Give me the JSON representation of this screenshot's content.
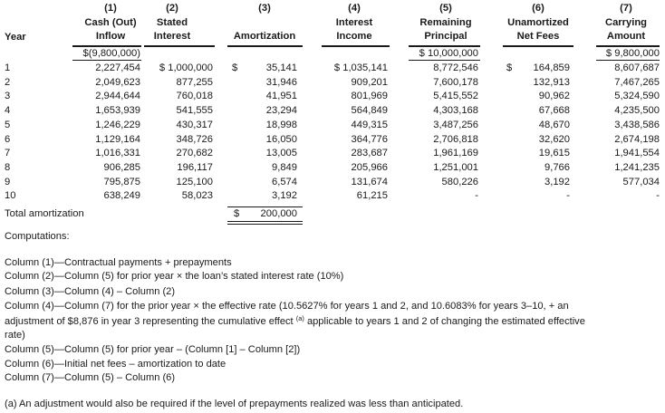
{
  "headers": [
    {
      "num": "(1)",
      "line1": "Cash (Out)",
      "line2": "Inflow"
    },
    {
      "num": "(2)",
      "line1": "Stated",
      "line2": "Interest"
    },
    {
      "num": "(3)",
      "line1": "",
      "line2": "Amortization"
    },
    {
      "num": "(4)",
      "line1": "Interest",
      "line2": "Income"
    },
    {
      "num": "(5)",
      "line1": "Remaining",
      "line2": "Principal"
    },
    {
      "num": "(6)",
      "line1": "Unamortized",
      "line2": "Net Fees"
    },
    {
      "num": "(7)",
      "line1": "Carrying",
      "line2": "Amount"
    }
  ],
  "year_header": "Year",
  "initial_row": {
    "c1": "$(9,800,000)",
    "c5": "$ 10,000,000",
    "c7": "$ 9,800,000"
  },
  "rows": [
    {
      "year": "1",
      "c1": "2,227,454",
      "c2": "$ 1,000,000",
      "c3": "35,141",
      "c4": "$ 1,035,141",
      "c5": "8,772,546",
      "c6": "164,859",
      "c7": "8,607,687"
    },
    {
      "year": "2",
      "c1": "2,049,623",
      "c2": "877,255",
      "c3": "31,946",
      "c4": "909,201",
      "c5": "7,600,178",
      "c6": "132,913",
      "c7": "7,467,265"
    },
    {
      "year": "3",
      "c1": "2,944,644",
      "c2": "760,018",
      "c3": "41,951",
      "c4": "801,969",
      "c5": "5,415,552",
      "c6": "90,962",
      "c7": "5,324,590"
    },
    {
      "year": "4",
      "c1": "1,653,939",
      "c2": "541,555",
      "c3": "23,294",
      "c4": "564,849",
      "c5": "4,303,168",
      "c6": "67,668",
      "c7": "4,235,500"
    },
    {
      "year": "5",
      "c1": "1,246,229",
      "c2": "430,317",
      "c3": "18,998",
      "c4": "449,315",
      "c5": "3,487,256",
      "c6": "48,670",
      "c7": "3,438,586"
    },
    {
      "year": "6",
      "c1": "1,129,164",
      "c2": "348,726",
      "c3": "16,050",
      "c4": "364,776",
      "c5": "2,706,818",
      "c6": "32,620",
      "c7": "2,674,198"
    },
    {
      "year": "7",
      "c1": "1,016,331",
      "c2": "270,682",
      "c3": "13,005",
      "c4": "283,687",
      "c5": "1,961,169",
      "c6": "19,615",
      "c7": "1,941,554"
    },
    {
      "year": "8",
      "c1": "906,285",
      "c2": "196,117",
      "c3": "9,849",
      "c4": "205,966",
      "c5": "1,251,001",
      "c6": "9,766",
      "c7": "1,241,235"
    },
    {
      "year": "9",
      "c1": "795,875",
      "c2": "125,100",
      "c3": "6,574",
      "c4": "131,674",
      "c5": "580,226",
      "c6": "3,192",
      "c7": "577,034"
    },
    {
      "year": "10",
      "c1": "638,249",
      "c2": "58,023",
      "c3": "3,192",
      "c4": "61,215",
      "c5": "-",
      "c6": "-",
      "c7": "-"
    }
  ],
  "dollar_sign": "$",
  "total": {
    "label": "Total amortization",
    "dollar": "$",
    "value": "200,000"
  },
  "computations": {
    "title": "Computations:",
    "col1": "Column (1)—Contractual payments + prepayments",
    "col2": "Column (2)—Column (5) for prior year × the loan’s stated interest rate (10%)",
    "col3": "Column (3)—Column (4) – Column (2)",
    "col4_line1": "Column (4)—Column (7) for the prior year × the effective rate (10.5627% for years 1 and 2, and 10.6083% for years 3–10, + an",
    "col4_line2a": "adjustment of $8,876 in year 3 representing the cumulative effect ",
    "col4_sup": "(a)",
    "col4_line2b": " applicable to years 1 and 2 of changing the estimated effective",
    "col4_line3": "rate)",
    "col5": "Column (5)—Column (5) for prior year – (Column [1] – Column [2])",
    "col6": "Column (6)—Initial net fees – amortization to date",
    "col7": "Column (7)—Column (5) – Column (6)"
  },
  "footnote": "(a)  An adjustment would also be required if the level of prepayments realized was less than anticipated."
}
